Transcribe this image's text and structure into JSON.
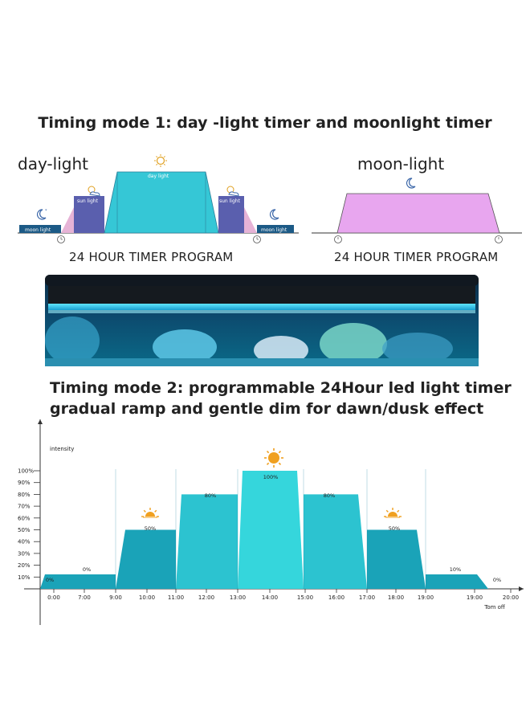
{
  "mode1": {
    "title": "Timing mode 1: day -light timer and moonlight timer",
    "daylight": {
      "label": "day-light",
      "program_label": "24 HOUR TIMER PROGRAM",
      "segments": {
        "moon_left": "moon light",
        "sun_left": "sun light",
        "day": "day light",
        "sun_right": "sun light",
        "moon_right": "moon light"
      },
      "icons": [
        "moon-icon",
        "sun-cloud-icon",
        "sun-icon",
        "sun-cloud-icon",
        "moon-icon",
        "clock-icon"
      ]
    },
    "moonlight": {
      "label": "moon-light",
      "program_label": "24 HOUR TIMER PROGRAM",
      "icons": [
        "moon-icon",
        "clock-icon"
      ]
    }
  },
  "aquarium": {
    "icon": "aquarium-photo"
  },
  "mode2": {
    "title_line1": "Timing mode 2: programmable 24Hour led light timer",
    "title_line2": "gradual ramp and gentle dim for dawn/dusk effect"
  },
  "chart_data": {
    "type": "area",
    "ylabel": "intensity",
    "y_ticks": [
      "100%",
      "90%",
      "80%",
      "70%",
      "60%",
      "50%",
      "40%",
      "30%",
      "20%",
      "10%"
    ],
    "x_ticks": [
      "0:00",
      "7:00",
      "9:00",
      "10:00",
      "11:00",
      "12:00",
      "13:00",
      "14:00",
      "15:00",
      "16:00",
      "17:00",
      "18:00",
      "19:00",
      "19:00",
      "20:00"
    ],
    "x_note": "Tom off",
    "ylim": [
      0,
      100
    ],
    "steps": [
      {
        "start": "0:00",
        "end": "9:00",
        "value": 0,
        "label": "0%"
      },
      {
        "start": "9:00",
        "end": "11:00",
        "value": 50,
        "label": "50%"
      },
      {
        "start": "11:00",
        "end": "13:00",
        "value": 80,
        "label": "80%"
      },
      {
        "start": "13:00",
        "end": "15:00",
        "value": 100,
        "label": "100%"
      },
      {
        "start": "15:00",
        "end": "17:00",
        "value": 80,
        "label": "80%"
      },
      {
        "start": "17:00",
        "end": "19:00",
        "value": 50,
        "label": "50%"
      },
      {
        "start": "19:00",
        "end": "19:00",
        "value": 10,
        "label": "10%"
      },
      {
        "start": "19:00",
        "end": "20:00",
        "value": 0,
        "label": "0%"
      }
    ],
    "colors": {
      "ramp": "#1aa3b8",
      "step_light": "#2cc3d0",
      "step_peak": "#35d6dc"
    }
  }
}
